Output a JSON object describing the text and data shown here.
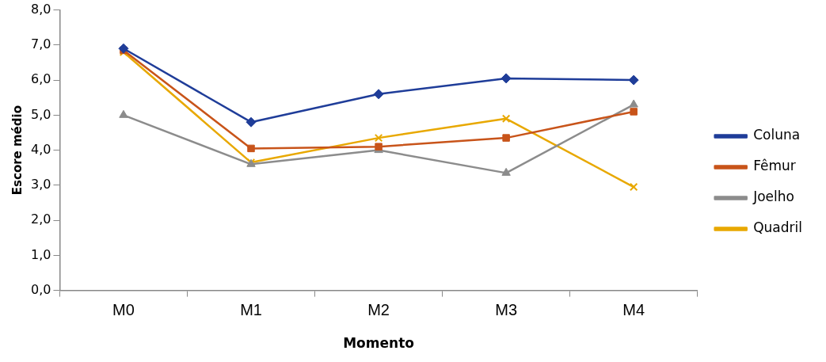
{
  "chart_data": {
    "type": "line",
    "xlabel": "Momento",
    "ylabel": "Escore médio",
    "categories": [
      "M0",
      "M1",
      "M2",
      "M3",
      "M4"
    ],
    "series": [
      {
        "name": "Coluna",
        "color": "#1f3d99",
        "marker": "diamond",
        "values": [
          6.9,
          4.8,
          5.6,
          6.05,
          6.0
        ]
      },
      {
        "name": "Fêmur",
        "color": "#c8541a",
        "marker": "square",
        "values": [
          6.85,
          4.05,
          4.1,
          4.35,
          5.1
        ]
      },
      {
        "name": "Joelho",
        "color": "#8c8c8c",
        "marker": "triangle",
        "values": [
          5.0,
          3.6,
          4.0,
          3.35,
          5.3
        ]
      },
      {
        "name": "Quadril",
        "color": "#e8a800",
        "marker": "cross",
        "values": [
          6.8,
          3.65,
          4.35,
          4.9,
          2.95
        ]
      }
    ],
    "ylim": [
      0,
      8
    ],
    "yticks": [
      {
        "value": 0,
        "label": "0,0"
      },
      {
        "value": 1,
        "label": "1,0"
      },
      {
        "value": 2,
        "label": "2,0"
      },
      {
        "value": 3,
        "label": "3,0"
      },
      {
        "value": 4,
        "label": "4,0"
      },
      {
        "value": 5,
        "label": "5,0"
      },
      {
        "value": 6,
        "label": "6,0"
      },
      {
        "value": 7,
        "label": "7,0"
      },
      {
        "value": 8,
        "label": "8,0"
      }
    ],
    "grid": false,
    "legend": "right",
    "line_style": "solid"
  }
}
